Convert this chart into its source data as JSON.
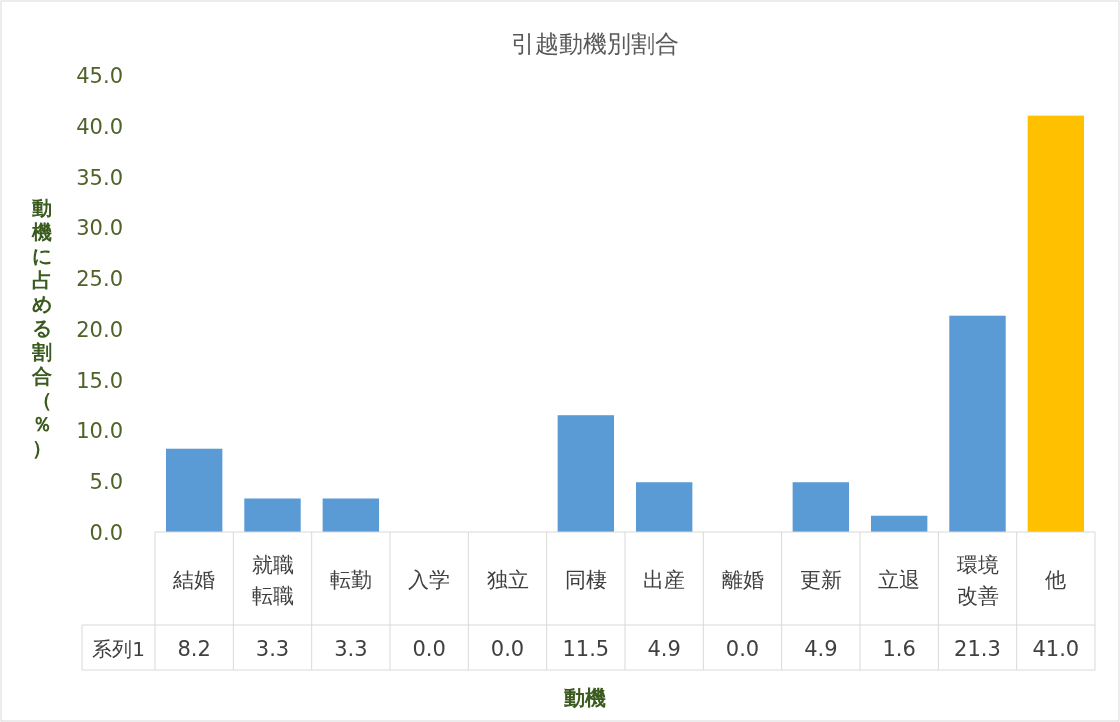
{
  "chart_data": {
    "type": "bar",
    "title": "引越動機別割合",
    "xlabel": "動機",
    "ylabel": "動機に占める割合（％）",
    "categories": [
      "結婚",
      "就職転職",
      "転勤",
      "入学",
      "独立",
      "同棲",
      "出産",
      "離婚",
      "更新",
      "立退",
      "環境改善",
      "他"
    ],
    "series": [
      {
        "name": "系列1",
        "values": [
          8.2,
          3.3,
          3.3,
          0.0,
          0.0,
          11.5,
          4.9,
          0.0,
          4.9,
          1.6,
          21.3,
          41.0
        ],
        "colors": [
          "#5b9bd5",
          "#5b9bd5",
          "#5b9bd5",
          "#5b9bd5",
          "#5b9bd5",
          "#5b9bd5",
          "#5b9bd5",
          "#5b9bd5",
          "#5b9bd5",
          "#5b9bd5",
          "#5b9bd5",
          "#ffc000"
        ],
        "value_labels": [
          "8.2",
          "3.3",
          "3.3",
          "0.0",
          "0.0",
          "11.5",
          "4.9",
          "0.0",
          "4.9",
          "1.6",
          "21.3",
          "41.0"
        ]
      }
    ],
    "ylim": [
      0,
      45
    ],
    "yticks": [
      {
        "value": 0,
        "label": "0.0"
      },
      {
        "value": 5,
        "label": "5.0"
      },
      {
        "value": 10,
        "label": "10.0"
      },
      {
        "value": 15,
        "label": "15.0"
      },
      {
        "value": 20,
        "label": "20.0"
      },
      {
        "value": 25,
        "label": "25.0"
      },
      {
        "value": 30,
        "label": "30.0"
      },
      {
        "value": 35,
        "label": "35.0"
      },
      {
        "value": 40,
        "label": "40.0"
      },
      {
        "value": 45,
        "label": "45.0"
      }
    ],
    "grid": false
  }
}
